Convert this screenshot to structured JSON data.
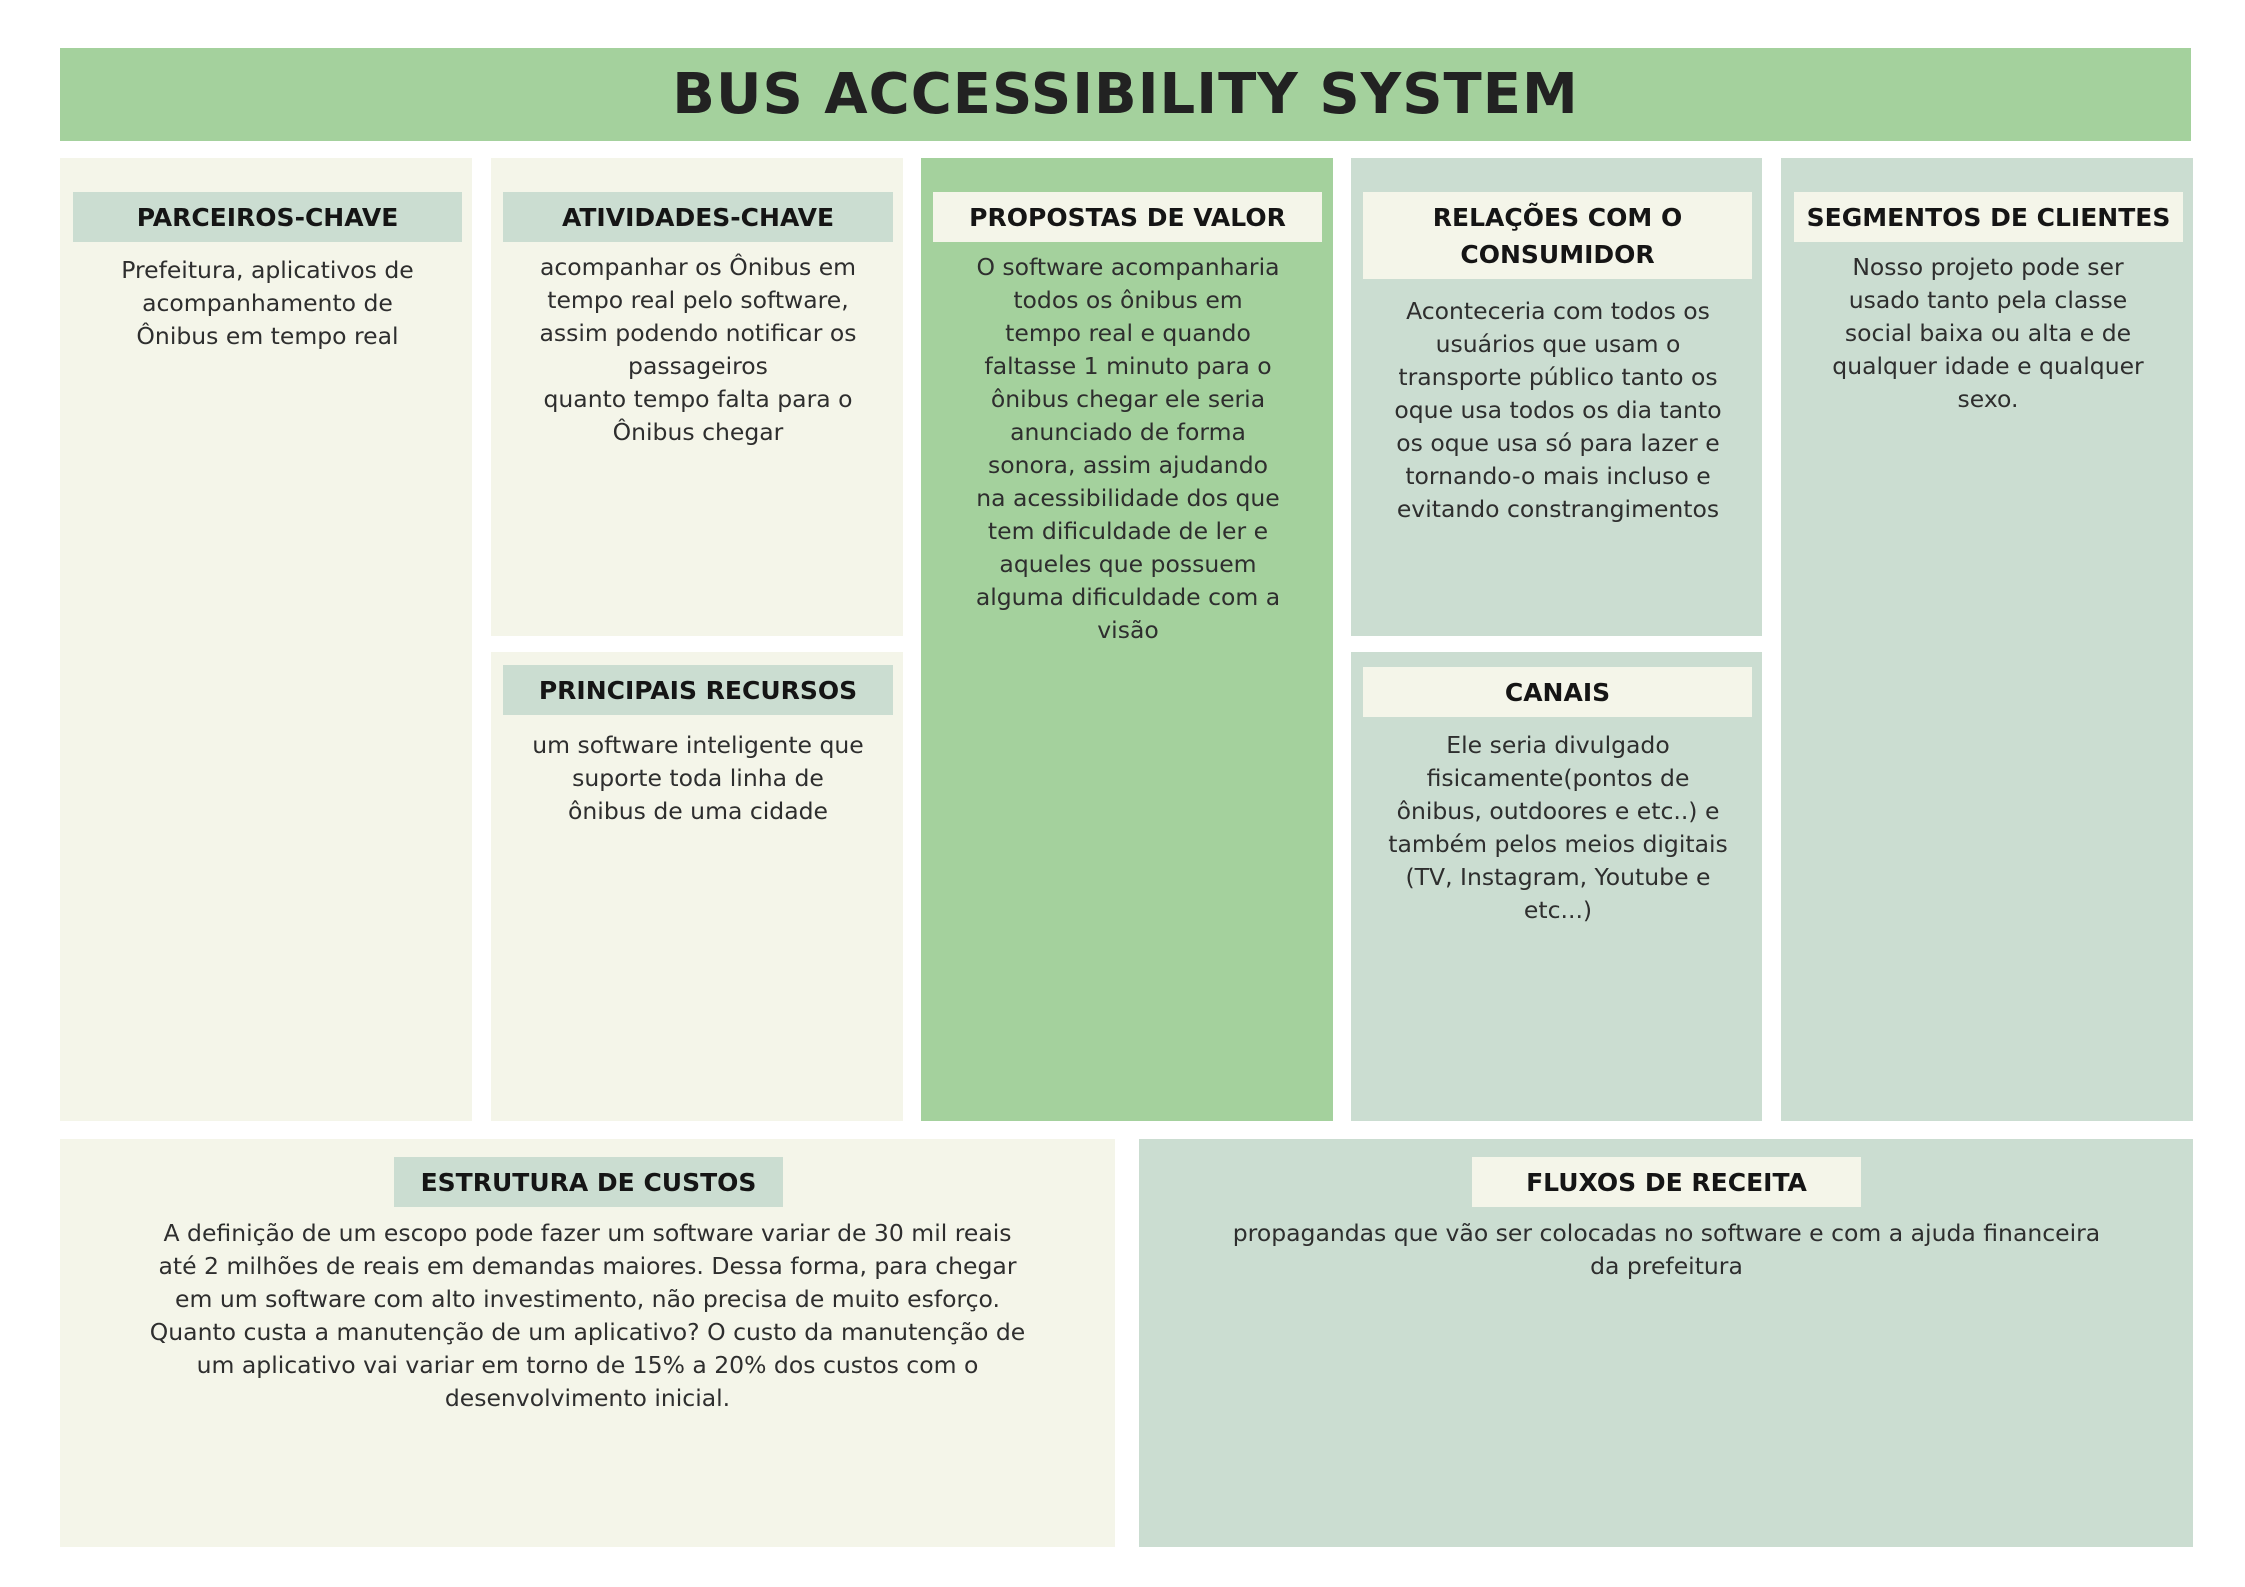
{
  "title": "BUS ACCESSIBILITY SYSTEM",
  "sections": {
    "parceiros_chave": {
      "label": "PARCEIROS-CHAVE",
      "text": "Prefeitura, aplicativos de\nacompanhamento de\nÔnibus em tempo real"
    },
    "atividades_chave": {
      "label": "ATIVIDADES-CHAVE",
      "text": "acompanhar os  Ônibus em\ntempo real pelo software,\nassim podendo notificar os\npassageiros\nquanto tempo falta para o\nÔnibus chegar"
    },
    "principais_recursos": {
      "label": "PRINCIPAIS RECURSOS",
      "text": "um software inteligente que\nsuporte toda linha de\nônibus de uma cidade"
    },
    "propostas_de_valor": {
      "label": "PROPOSTAS DE VALOR",
      "text": "O software acompanharia\ntodos os ônibus em\ntempo real e quando\nfaltasse 1 minuto para o\nônibus chegar ele seria\nanunciado de forma\nsonora, assim ajudando\nna acessibilidade dos que\ntem dificuldade de ler e\naqueles que possuem\nalguma dificuldade com a\nvisão"
    },
    "relacoes_com_o_consumidor": {
      "label": "RELAÇÕES COM O\nCONSUMIDOR",
      "text": "Aconteceria com todos os\nusuários que usam o\ntransporte público tanto os\noque usa todos os dia tanto\nos oque usa só para lazer e\ntornando-o mais incluso e\nevitando constrangimentos"
    },
    "canais": {
      "label": "CANAIS",
      "text": "Ele seria divulgado\nfisicamente(pontos de\nônibus, outdoores e etc..) e\ntambém pelos meios digitais\n(TV, Instagram, Youtube e\netc...)"
    },
    "segmentos_de_clientes": {
      "label": "SEGMENTOS DE CLIENTES",
      "text": "Nosso projeto pode ser\nusado tanto pela classe\nsocial baixa ou alta e de\nqualquer idade e qualquer\nsexo."
    },
    "estrutura_de_custos": {
      "label": "ESTRUTURA DE CUSTOS",
      "text": "A definição de um escopo pode fazer um software variar de 30 mil reais\naté 2 milhões de reais em demandas maiores. Dessa forma, para chegar\nem um software com alto investimento, não precisa de muito esforço.\nQuanto custa a manutenção de um aplicativo? O custo da manutenção de\num aplicativo vai variar em torno de 15% a 20% dos custos com o\ndesenvolvimento inicial."
    },
    "fluxos_de_receita": {
      "label": "FLUXOS DE RECEITA",
      "text": "propagandas que vão ser colocadas no software e com a ajuda financeira\nda prefeitura"
    }
  },
  "colors": {
    "green": "#a4d19d",
    "sage": "#cbddd1",
    "cream": "#f4f5e9"
  }
}
